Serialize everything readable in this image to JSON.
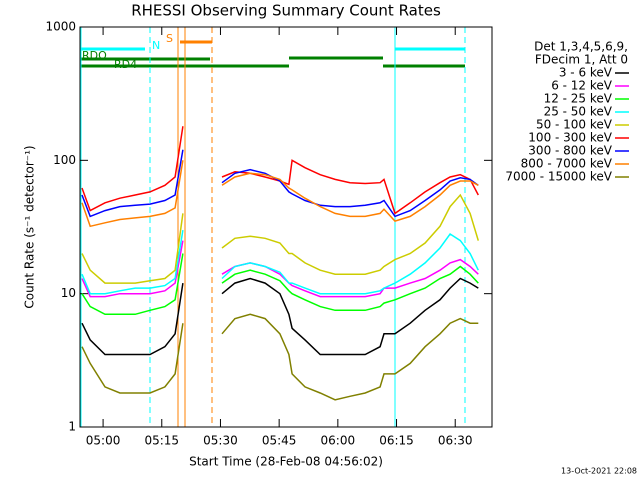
{
  "chart_data": {
    "type": "line",
    "title": "RHESSI Observing Summary Count Rates",
    "x_label": "Start Time (28-Feb-08 04:56:02)",
    "y_label": "Count Rate (s⁻¹ detector⁻¹)",
    "legend_header": [
      "Det 1,3,4,5,6,9,",
      "FDecim 1, Att 0"
    ],
    "annotations": [
      "N",
      "S",
      "RDO",
      "RD4"
    ],
    "footer": "13-Oct-2021 22:08",
    "log_y": true,
    "xlim": [
      294.1,
      399.4
    ],
    "ylim": [
      1,
      1000
    ],
    "yticks": [
      1,
      10,
      100,
      1000
    ],
    "xticks": [
      {
        "value": 300,
        "label": "05:00"
      },
      {
        "value": 315,
        "label": "05:15"
      },
      {
        "value": 330,
        "label": "05:30"
      },
      {
        "value": 345,
        "label": "05:45"
      },
      {
        "value": 360,
        "label": "06:00"
      },
      {
        "value": 375,
        "label": "06:15"
      },
      {
        "value": 390,
        "label": "06:30"
      }
    ],
    "x": [
      294.6,
      296.7,
      300.5,
      304.3,
      308.2,
      312.0,
      315.8,
      318.4,
      320.4,
      324.8,
      330.4,
      333.7,
      337.6,
      341.4,
      345.2,
      347.5,
      348.3,
      351.6,
      355.5,
      359.3,
      363.1,
      367.0,
      370.8,
      371.8,
      374.6,
      378.5,
      382.3,
      386.1,
      388.7,
      391.3,
      393.8,
      395.9
    ],
    "series": [
      {
        "name": "3 - 6 keV",
        "color": "#000000",
        "values": [
          6,
          4.5,
          3.5,
          3.5,
          3.5,
          3.5,
          4,
          5,
          12,
          null,
          10,
          12,
          13,
          12,
          10,
          7,
          5.5,
          4.5,
          3.5,
          3.5,
          3.5,
          3.5,
          4,
          5,
          5,
          6,
          7.5,
          9,
          11,
          13,
          12,
          11
        ]
      },
      {
        "name": "6 - 12 keV",
        "color": "#ff00ff",
        "values": [
          13,
          9.5,
          9.5,
          10,
          10,
          10,
          10.5,
          12,
          25,
          null,
          14,
          16,
          17,
          16,
          14,
          12,
          11.5,
          10.5,
          9.5,
          9.5,
          9.5,
          9.5,
          10,
          11,
          11,
          12,
          13,
          15,
          17,
          18,
          16,
          14
        ]
      },
      {
        "name": "12 - 25 keV",
        "color": "#00ff00",
        "values": [
          10,
          8,
          7,
          7,
          7,
          7.5,
          8,
          9,
          20,
          null,
          12,
          14,
          15,
          14,
          12.5,
          10.5,
          10,
          9,
          8,
          7.5,
          7.5,
          7.5,
          8,
          8.5,
          9,
          10,
          11,
          13,
          14,
          16,
          14,
          12
        ]
      },
      {
        "name": "25 - 50 keV",
        "color": "#00ffff",
        "values": [
          14,
          10,
          10,
          10.5,
          11,
          11,
          11.5,
          13,
          30,
          null,
          13,
          16,
          17,
          16,
          14.5,
          12,
          12,
          11,
          10,
          10,
          10,
          10,
          10.5,
          11,
          12,
          14,
          17,
          22,
          28,
          25,
          20,
          15
        ]
      },
      {
        "name": "50 - 100 keV",
        "color": "#cccc00",
        "values": [
          20,
          15,
          12,
          12,
          12,
          12.5,
          13,
          15,
          40,
          null,
          22,
          26,
          27,
          26,
          24,
          20,
          20,
          17,
          15,
          14,
          14,
          14,
          15,
          16,
          18,
          20,
          24,
          32,
          45,
          55,
          40,
          25
        ]
      },
      {
        "name": "100 - 300 keV",
        "color": "#ff0000",
        "values": [
          62,
          42,
          48,
          52,
          55,
          58,
          65,
          75,
          180,
          null,
          75,
          82,
          80,
          75,
          70,
          66,
          100,
          88,
          78,
          72,
          68,
          67,
          68,
          72,
          40,
          48,
          58,
          68,
          75,
          78,
          72,
          55
        ]
      },
      {
        "name": "300 - 800 keV",
        "color": "#0000ff",
        "values": [
          55,
          38,
          42,
          45,
          46,
          47,
          50,
          55,
          120,
          null,
          68,
          80,
          85,
          80,
          70,
          58,
          56,
          50,
          46,
          45,
          45,
          46,
          48,
          50,
          38,
          42,
          50,
          60,
          70,
          74,
          72,
          65
        ]
      },
      {
        "name": "800 - 7000 keV",
        "color": "#ff8000",
        "values": [
          48,
          32,
          34,
          36,
          37,
          38,
          40,
          44,
          100,
          null,
          65,
          75,
          80,
          78,
          72,
          62,
          60,
          52,
          45,
          40,
          38,
          38,
          40,
          43,
          35,
          38,
          45,
          55,
          65,
          70,
          70,
          65
        ]
      },
      {
        "name": "7000 - 15000 keV",
        "color": "#808000",
        "values": [
          4,
          3,
          2,
          1.8,
          1.8,
          1.8,
          2,
          2.5,
          6,
          null,
          5,
          6.5,
          7,
          6.5,
          5,
          3.5,
          2.5,
          2,
          1.8,
          1.6,
          1.7,
          1.8,
          2,
          2.5,
          2.5,
          3,
          4,
          5,
          6,
          6.5,
          6,
          6
        ]
      }
    ]
  }
}
